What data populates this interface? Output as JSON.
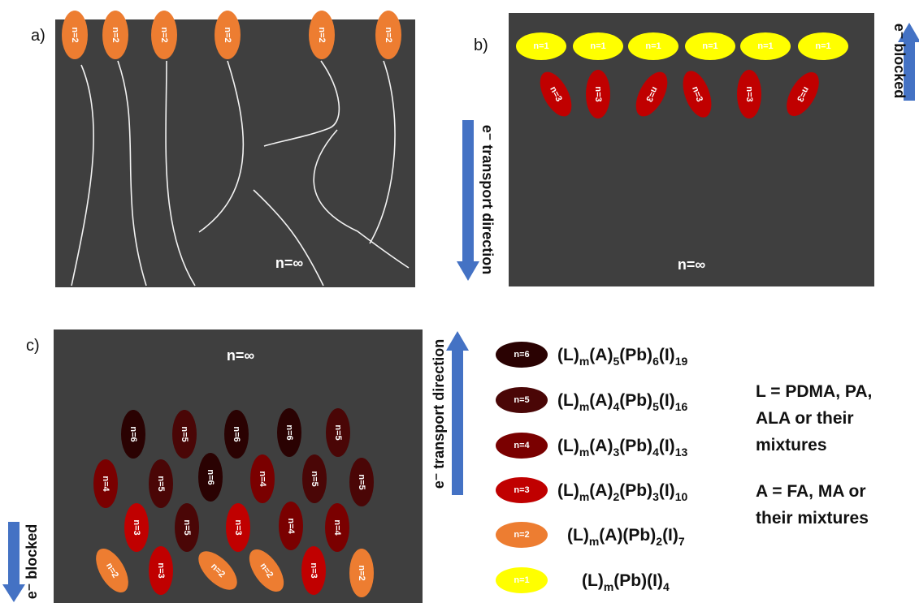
{
  "colors": {
    "panel_bg": "#3f3f3f",
    "arrow": "#4472c4",
    "n1": "#ffff00",
    "n2": "#ed7d31",
    "n3": "#c00000",
    "n4": "#7a0000",
    "n5": "#4a0606",
    "n6": "#2a0202"
  },
  "panels": {
    "a": {
      "label": "a)",
      "bulk": "n=∞"
    },
    "b": {
      "label": "b)",
      "bulk": "n=∞"
    },
    "c": {
      "label": "c)",
      "bulk": "n=∞"
    }
  },
  "arrows": {
    "b_up": "e⁻ blocked",
    "b_down": "e⁻ transport direction",
    "c_up": "e⁻ transport direction",
    "c_down": "e⁻ blocked"
  },
  "phase_labels": {
    "n1": "n=1",
    "n2": "n=2",
    "n3": "n=3",
    "n4": "n=4",
    "n5": "n=5",
    "n6": "n=6"
  },
  "legend": [
    {
      "key": "n6",
      "pill": "n=6",
      "formula": [
        "(L)",
        "m",
        "(A)",
        "5",
        "(Pb)",
        "6",
        "(I)",
        "19"
      ]
    },
    {
      "key": "n5",
      "pill": "n=5",
      "formula": [
        "(L)",
        "m",
        "(A)",
        "4",
        "(Pb)",
        "5",
        "(I)",
        "16"
      ]
    },
    {
      "key": "n4",
      "pill": "n=4",
      "formula": [
        "(L)",
        "m",
        "(A)",
        "3",
        "(Pb)",
        "4",
        "(I)",
        "13"
      ]
    },
    {
      "key": "n3",
      "pill": "n=3",
      "formula": [
        "(L)",
        "m",
        "(A)",
        "2",
        "(Pb)",
        "3",
        "(I)",
        "10"
      ]
    },
    {
      "key": "n2",
      "pill": "n=2",
      "formula": [
        "(L)",
        "m",
        "(A)(Pb)",
        "2",
        "(I)",
        "7"
      ]
    },
    {
      "key": "n1",
      "pill": "n=1",
      "formula": [
        "(L)",
        "m",
        "(Pb)(I)",
        "4"
      ]
    }
  ],
  "definitions": {
    "L": [
      "L = PDMA, PA,",
      "ALA or their",
      "mixtures"
    ],
    "A": [
      "A = FA, MA or",
      "their mixtures"
    ]
  }
}
